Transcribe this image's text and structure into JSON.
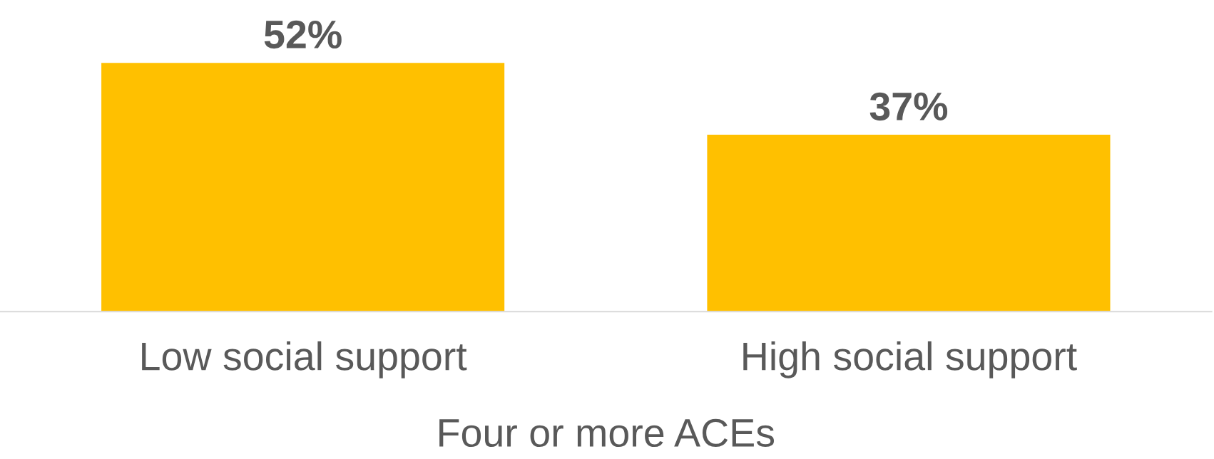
{
  "chart_data": {
    "type": "bar",
    "xlabel": "Four or more ACEs",
    "categories": [
      "Low social support",
      "High social support"
    ],
    "values": [
      52,
      37
    ],
    "value_labels": [
      "52%",
      "37%"
    ],
    "color": "#ffc000",
    "grid": false,
    "legend": false
  }
}
